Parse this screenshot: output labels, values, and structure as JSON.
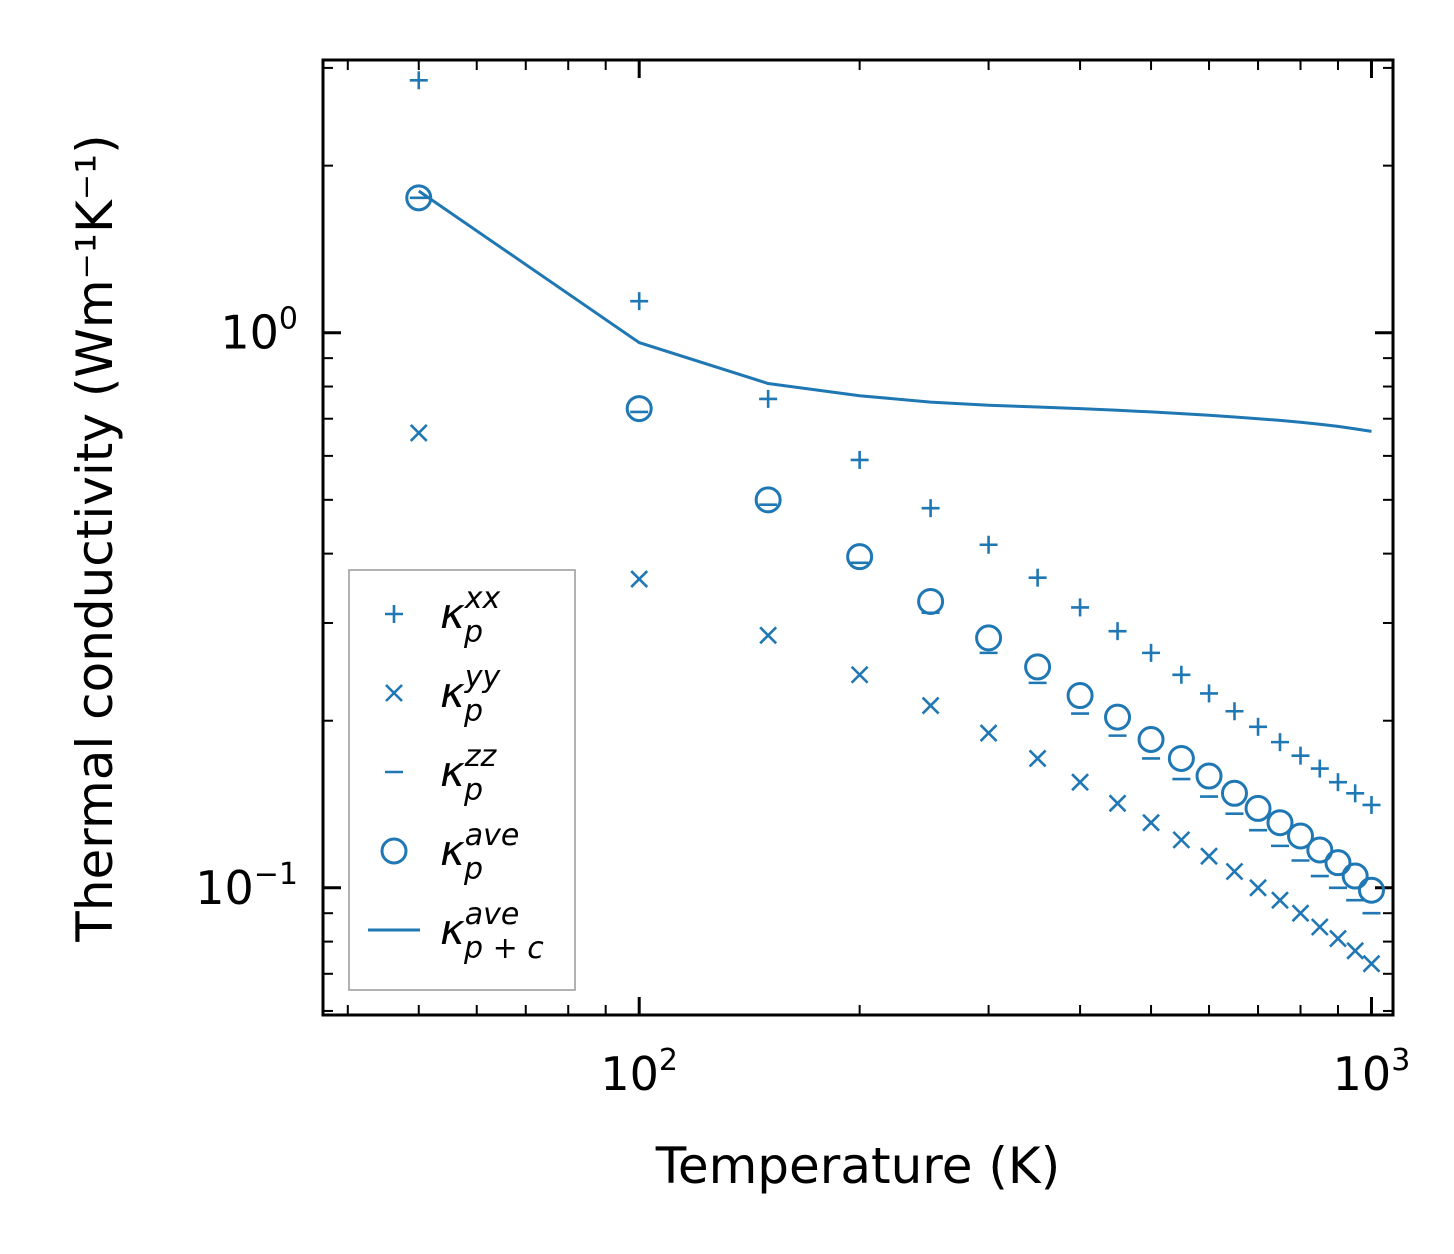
{
  "chart_data": {
    "type": "scatter",
    "title": "",
    "xlabel": "Temperature (K)",
    "ylabel": "Thermal conductivity (Wm⁻¹K⁻¹)",
    "xscale": "log",
    "yscale": "log",
    "xlim": [
      37,
      1070
    ],
    "ylim": [
      0.059,
      3.1
    ],
    "x_ticks": [
      {
        "value": 100,
        "base": "10",
        "exp": "2"
      },
      {
        "value": 1000,
        "base": "10",
        "exp": "3"
      }
    ],
    "y_ticks": [
      {
        "value": 0.1,
        "base": "10",
        "exp": "−1"
      },
      {
        "value": 1,
        "base": "10",
        "exp": "0"
      }
    ],
    "x": [
      50,
      100,
      150,
      200,
      250,
      300,
      350,
      400,
      450,
      500,
      550,
      600,
      650,
      700,
      750,
      800,
      850,
      900,
      950,
      1000
    ],
    "series": [
      {
        "name": "k_xx",
        "marker": "plus",
        "values": [
          2.85,
          1.14,
          0.76,
          0.59,
          0.483,
          0.415,
          0.362,
          0.32,
          0.29,
          0.265,
          0.242,
          0.224,
          0.208,
          0.195,
          0.183,
          0.173,
          0.164,
          0.155,
          0.148,
          0.141
        ]
      },
      {
        "name": "k_yy",
        "marker": "x",
        "values": [
          0.66,
          0.36,
          0.285,
          0.242,
          0.213,
          0.19,
          0.171,
          0.155,
          0.142,
          0.131,
          0.122,
          0.114,
          0.107,
          0.1,
          0.095,
          0.09,
          0.085,
          0.081,
          0.077,
          0.073
        ]
      },
      {
        "name": "k_zz",
        "marker": "hline",
        "values": [
          1.75,
          0.72,
          0.49,
          0.385,
          0.313,
          0.265,
          0.234,
          0.206,
          0.188,
          0.171,
          0.157,
          0.146,
          0.136,
          0.127,
          0.119,
          0.112,
          0.105,
          0.1,
          0.095,
          0.09
        ]
      },
      {
        "name": "k_ave",
        "marker": "circle",
        "values": [
          1.75,
          0.73,
          0.5,
          0.395,
          0.328,
          0.282,
          0.25,
          0.222,
          0.203,
          0.185,
          0.171,
          0.159,
          0.148,
          0.139,
          0.131,
          0.124,
          0.117,
          0.111,
          0.105,
          0.099
        ]
      },
      {
        "name": "k_p+c_ave",
        "marker": "line",
        "values": [
          1.8,
          0.96,
          0.81,
          0.77,
          0.75,
          0.74,
          0.735,
          0.73,
          0.725,
          0.72,
          0.715,
          0.71,
          0.705,
          0.7,
          0.695,
          0.69,
          0.684,
          0.678,
          0.671,
          0.664
        ]
      }
    ],
    "legend": {
      "placement": "lower-left",
      "entries": [
        {
          "symbol": "κ",
          "sub": "p",
          "sup": "xx"
        },
        {
          "symbol": "κ",
          "sub": "p",
          "sup": "yy"
        },
        {
          "symbol": "κ",
          "sub": "p",
          "sup": "zz"
        },
        {
          "symbol": "κ",
          "sub": "p",
          "sup": "ave"
        },
        {
          "symbol": "κ",
          "sub": "p + c",
          "sup": "ave"
        }
      ]
    },
    "color": "#1f77b4",
    "grid": false
  }
}
